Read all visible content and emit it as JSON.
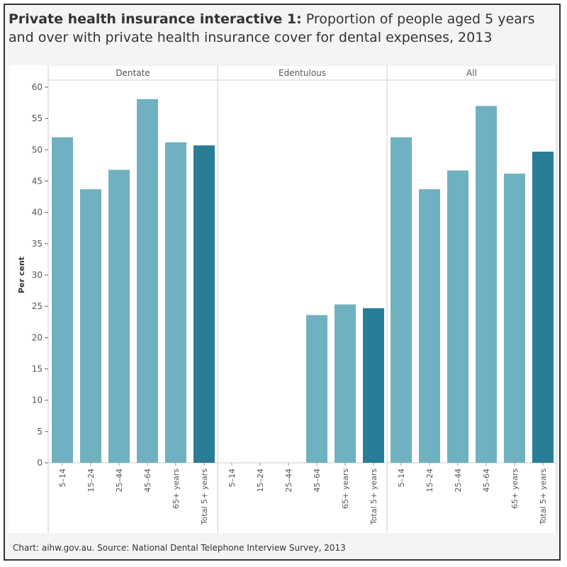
{
  "title": {
    "bold": "Private health insurance interactive 1:",
    "rest": " Proportion of people aged 5 years and over with private health insurance cover for dental expenses, 2013"
  },
  "footer": "Chart: aihw.gov.au. Source: National Dental Telephone Interview Survey, 2013",
  "colors": {
    "age_bar": "#70b1c1",
    "total_bar": "#2a7d96"
  },
  "chart_data": {
    "type": "bar",
    "ylabel": "Per cent",
    "ylim": [
      0,
      60
    ],
    "yticks": [
      0,
      5,
      10,
      15,
      20,
      25,
      30,
      35,
      40,
      45,
      50,
      55,
      60
    ],
    "grid": false,
    "categories": [
      "5–14",
      "15–24",
      "25–44",
      "45–64",
      "65+ years",
      "Total 5+ years"
    ],
    "panels": [
      {
        "name": "Dentate",
        "values": [
          52.0,
          43.7,
          46.8,
          58.1,
          51.2,
          50.7
        ]
      },
      {
        "name": "Edentulous",
        "values": [
          null,
          null,
          null,
          23.6,
          25.3,
          24.7
        ]
      },
      {
        "name": "All",
        "values": [
          52.0,
          43.7,
          46.7,
          57.0,
          46.2,
          49.7
        ]
      }
    ]
  }
}
